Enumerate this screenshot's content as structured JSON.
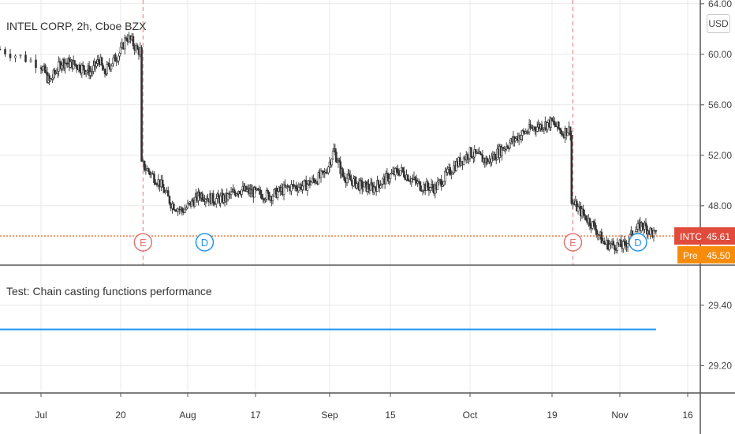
{
  "header": {
    "symbol_title": "INTEL CORP, 2h, Cboe BZX",
    "currency_button": "USD"
  },
  "indicator": {
    "title": "Test: Chain casting functions performance"
  },
  "price_labels": {
    "last": {
      "ticker": "INTC",
      "value": "45.61",
      "color": "#e04b3c"
    },
    "pre": {
      "ticker": "Pre",
      "value": "45.50",
      "color": "#f78b0c"
    }
  },
  "events": [
    {
      "letter": "E",
      "date": "Jul 24",
      "color": "#e57373"
    },
    {
      "letter": "D",
      "date": "Aug 5",
      "color": "#2196f3"
    },
    {
      "letter": "E",
      "date": "Oct 23",
      "color": "#e57373"
    },
    {
      "letter": "D",
      "date": "Nov 5",
      "color": "#2196f3"
    }
  ],
  "colors": {
    "up": "#26a69a",
    "down": "#ef5350",
    "candle": "#333333",
    "price_line": "#e65100",
    "indicator_line": "#2196f3",
    "earnings_line": "#e57373",
    "grid": "#e8e8e8"
  },
  "chart_data": [
    {
      "type": "candlestick",
      "title": "INTEL CORP, 2h, Cboe BZX",
      "x_ticks": [
        "Jul",
        "20",
        "Aug",
        "17",
        "Sep",
        "15",
        "Oct",
        "19",
        "Nov",
        "16"
      ],
      "y_ticks": [
        "64.00",
        "60.00",
        "56.00",
        "52.00",
        "48.00"
      ],
      "ylim": [
        43.3,
        64.3
      ],
      "last_price": 45.61,
      "pre_market_price": 45.5,
      "series": [
        {
          "name": "INTC",
          "approx_closes": [
            {
              "x": "Jun 29",
              "close": 60.4
            },
            {
              "x": "Jul 1",
              "close": 59.2
            },
            {
              "x": "Jul 3",
              "close": 57.8
            },
            {
              "x": "Jul 6",
              "close": 59.4
            },
            {
              "x": "Jul 9",
              "close": 59.2
            },
            {
              "x": "Jul 13",
              "close": 58.6
            },
            {
              "x": "Jul 15",
              "close": 59.6
            },
            {
              "x": "Jul 16",
              "close": 58.4
            },
            {
              "x": "Jul 17",
              "close": 59.0
            },
            {
              "x": "Jul 20",
              "close": 60.2
            },
            {
              "x": "Jul 21",
              "close": 61.4
            },
            {
              "x": "Jul 22",
              "close": 61.0
            },
            {
              "x": "Jul 23",
              "close": 60.3
            },
            {
              "x": "Jul 24",
              "close": 51.2
            },
            {
              "x": "Jul 27",
              "close": 49.8
            },
            {
              "x": "Jul 29",
              "close": 48.2
            },
            {
              "x": "Jul 31",
              "close": 47.6
            },
            {
              "x": "Aug 4",
              "close": 48.9
            },
            {
              "x": "Aug 7",
              "close": 48.5
            },
            {
              "x": "Aug 10",
              "close": 48.6
            },
            {
              "x": "Aug 13",
              "close": 49.3
            },
            {
              "x": "Aug 17",
              "close": 49.0
            },
            {
              "x": "Aug 20",
              "close": 48.8
            },
            {
              "x": "Aug 24",
              "close": 49.5
            },
            {
              "x": "Aug 27",
              "close": 49.6
            },
            {
              "x": "Aug 31",
              "close": 50.5
            },
            {
              "x": "Sep 2",
              "close": 52.4
            },
            {
              "x": "Sep 4",
              "close": 50.4
            },
            {
              "x": "Sep 8",
              "close": 49.6
            },
            {
              "x": "Sep 11",
              "close": 49.4
            },
            {
              "x": "Sep 15",
              "close": 50.4
            },
            {
              "x": "Sep 17",
              "close": 50.8
            },
            {
              "x": "Sep 21",
              "close": 49.6
            },
            {
              "x": "Sep 24",
              "close": 49.4
            },
            {
              "x": "Sep 28",
              "close": 51.2
            },
            {
              "x": "Oct 1",
              "close": 52.2
            },
            {
              "x": "Oct 5",
              "close": 51.5
            },
            {
              "x": "Oct 8",
              "close": 52.5
            },
            {
              "x": "Oct 12",
              "close": 53.6
            },
            {
              "x": "Oct 15",
              "close": 54.2
            },
            {
              "x": "Oct 19",
              "close": 54.6
            },
            {
              "x": "Oct 21",
              "close": 53.8
            },
            {
              "x": "Oct 22",
              "close": 54.0
            },
            {
              "x": "Oct 23",
              "close": 48.2
            },
            {
              "x": "Oct 27",
              "close": 46.4
            },
            {
              "x": "Oct 29",
              "close": 45.0
            },
            {
              "x": "Nov 2",
              "close": 44.8
            },
            {
              "x": "Nov 4",
              "close": 45.9
            },
            {
              "x": "Nov 6",
              "close": 46.5
            },
            {
              "x": "Nov 9",
              "close": 45.61
            }
          ]
        }
      ]
    },
    {
      "type": "line",
      "title": "Test: Chain casting functions performance",
      "y_ticks": [
        "29.40",
        "29.20"
      ],
      "ylim": [
        29.11,
        29.53
      ],
      "series": [
        {
          "values": [
            29.32,
            29.32
          ]
        }
      ]
    }
  ]
}
